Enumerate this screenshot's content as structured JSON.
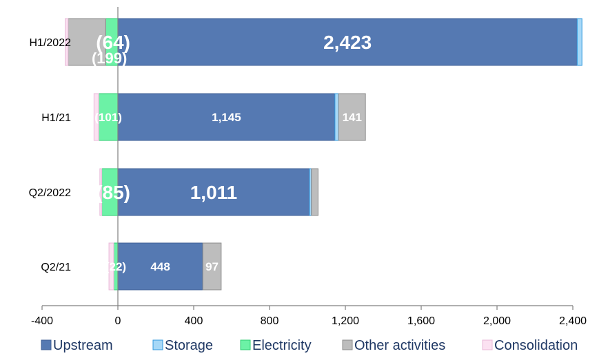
{
  "chart_data": {
    "type": "bar",
    "orientation": "horizontal",
    "stacked": true,
    "categories": [
      "H1/2022",
      "H1/21",
      "Q2/2022",
      "Q2/21"
    ],
    "series": [
      {
        "name": "Upstream",
        "color": "#5579b2",
        "border": "#3f5f95",
        "values": [
          2423,
          1145,
          1011,
          448
        ]
      },
      {
        "name": "Storage",
        "color": "#a6d8f7",
        "border": "#3399dd",
        "values": [
          25,
          20,
          10,
          0
        ]
      },
      {
        "name": "Electricity",
        "color": "#6cf2a6",
        "border": "#2ecc71",
        "values": [
          -64,
          -101,
          -85,
          -22
        ]
      },
      {
        "name": "Other activities",
        "color": "#bdbdbd",
        "border": "#8c8c8c",
        "values": [
          -199,
          141,
          35,
          97
        ]
      },
      {
        "name": "Consolidation",
        "color": "#fbe1f1",
        "border": "#e8b8d8",
        "values": [
          -15,
          -25,
          -10,
          -25
        ]
      }
    ],
    "data_labels": [
      {
        "category": "H1/2022",
        "series": "Upstream",
        "text": "2,423",
        "size": 28
      },
      {
        "category": "H1/2022",
        "series": "Electricity",
        "text": "(64)",
        "size": 28
      },
      {
        "category": "H1/2022",
        "series": "Other activities",
        "text": "(199)",
        "size": 22
      },
      {
        "category": "H1/21",
        "series": "Upstream",
        "text": "1,145",
        "size": 17
      },
      {
        "category": "H1/21",
        "series": "Electricity",
        "text": "(101)",
        "size": 17
      },
      {
        "category": "H1/21",
        "series": "Other activities",
        "text": "141",
        "size": 17
      },
      {
        "category": "Q2/2022",
        "series": "Upstream",
        "text": "1,011",
        "size": 28
      },
      {
        "category": "Q2/2022",
        "series": "Electricity",
        "text": "(85)",
        "size": 28
      },
      {
        "category": "Q2/21",
        "series": "Upstream",
        "text": "448",
        "size": 17
      },
      {
        "category": "Q2/21",
        "series": "Electricity",
        "text": "(22)",
        "size": 17
      },
      {
        "category": "Q2/21",
        "series": "Other activities",
        "text": "97",
        "size": 17
      }
    ],
    "xlim": [
      -400,
      2400
    ],
    "x_ticks": [
      -400,
      0,
      400,
      800,
      1200,
      1600,
      2000,
      2400
    ],
    "x_tick_labels": [
      "-400",
      "0",
      "400",
      "800",
      "1,200",
      "1,600",
      "2,000",
      "2,400"
    ],
    "title": "",
    "xlabel": "",
    "ylabel": "",
    "grid": false,
    "legend_position": "bottom"
  }
}
